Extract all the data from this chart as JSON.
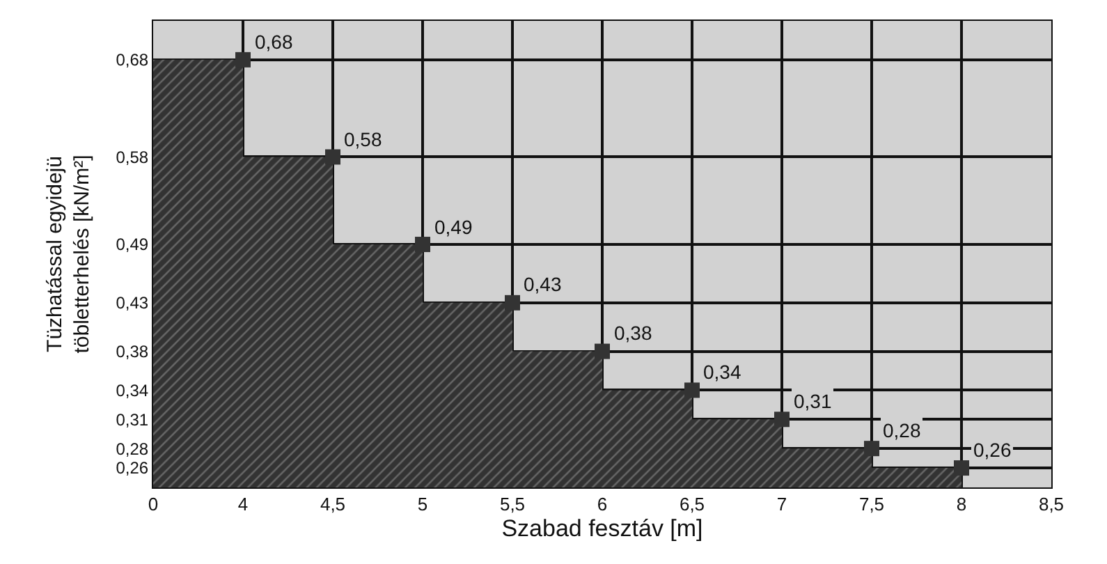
{
  "chart_data": {
    "type": "step",
    "xlabel": "Szabad fesztáv [m]",
    "ylabel": "Tüzhatással egyidejü\ntöbletterhelés [kN/m²]",
    "categories": [
      "0",
      "4",
      "4,5",
      "5",
      "5,5",
      "6",
      "6,5",
      "7",
      "7,5",
      "8",
      "8,5"
    ],
    "series": [
      {
        "type": "area",
        "color": "#333333",
        "values": [
          0.68,
          0.68,
          0.58,
          0.49,
          0.43,
          0.38,
          0.34,
          0.31,
          0.28,
          0.26,
          null
        ],
        "value_labels": [
          null,
          "0,68",
          "0,58",
          "0,49",
          "0,43",
          "0,38",
          "0,34",
          "0,31",
          "0,28",
          "0,26",
          null
        ]
      }
    ],
    "ylim": [
      0.24,
      0.72
    ],
    "yticks": [
      {
        "value": 0.26,
        "label": "0,26"
      },
      {
        "value": 0.28,
        "label": "0,28"
      },
      {
        "value": 0.31,
        "label": "0,31"
      },
      {
        "value": 0.34,
        "label": "0,34"
      },
      {
        "value": 0.38,
        "label": "0,38"
      },
      {
        "value": 0.43,
        "label": "0,43"
      },
      {
        "value": 0.49,
        "label": "0,49"
      },
      {
        "value": 0.58,
        "label": "0,58"
      },
      {
        "value": 0.68,
        "label": "0,68"
      }
    ],
    "grid": true,
    "marker": "square"
  }
}
